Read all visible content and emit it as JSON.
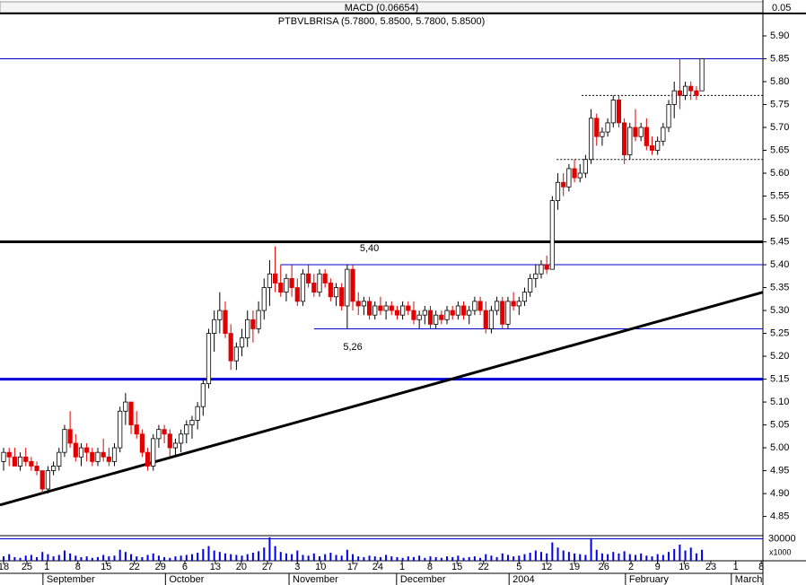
{
  "chart_data": {
    "type": "candlestick",
    "title": "MACD (0.06654)",
    "subtitle": "PTBVLBRISA (5.7800, 5.8500, 5.7800, 5.8500)",
    "macd_ticks": [
      {
        "value": 0.05,
        "label": "0.05"
      }
    ],
    "up_color": "#ffffff",
    "down_color": "#e00000",
    "xlim": [
      -0.65,
      137
    ],
    "xticks": [
      {
        "value": 0,
        "label": "18"
      },
      {
        "value": 4.2,
        "label": "25"
      },
      {
        "value": 7.8,
        "label": "1"
      },
      {
        "value": 13.4,
        "label": "8"
      },
      {
        "value": 18.5,
        "label": "15"
      },
      {
        "value": 23.6,
        "label": "22"
      },
      {
        "value": 28.3,
        "label": "29"
      },
      {
        "value": 32.7,
        "label": "6"
      },
      {
        "value": 38.2,
        "label": "13"
      },
      {
        "value": 42.9,
        "label": "20"
      },
      {
        "value": 47.6,
        "label": "27"
      },
      {
        "value": 53,
        "label": "3"
      },
      {
        "value": 57.2,
        "label": "10"
      },
      {
        "value": 63,
        "label": "17"
      },
      {
        "value": 67.5,
        "label": "24"
      },
      {
        "value": 71.9,
        "label": "1"
      },
      {
        "value": 76.9,
        "label": "8"
      },
      {
        "value": 81.8,
        "label": "15"
      },
      {
        "value": 86.6,
        "label": "22"
      },
      {
        "value": 93,
        "label": "5"
      },
      {
        "value": 98,
        "label": "12"
      },
      {
        "value": 103,
        "label": "19"
      },
      {
        "value": 108.3,
        "label": "26"
      },
      {
        "value": 113.2,
        "label": "2"
      },
      {
        "value": 118,
        "label": "9"
      },
      {
        "value": 122.8,
        "label": "16"
      },
      {
        "value": 127.6,
        "label": "23"
      },
      {
        "value": 132.1,
        "label": "1"
      },
      {
        "value": 136.7,
        "label": "8"
      }
    ],
    "months": [
      {
        "value": 7.1,
        "label": "September"
      },
      {
        "value": 29.2,
        "label": "October"
      },
      {
        "value": 51.5,
        "label": "November"
      },
      {
        "value": 70.9,
        "label": "December"
      },
      {
        "value": 91.2,
        "label": "2004"
      },
      {
        "value": 112.2,
        "label": "February"
      },
      {
        "value": 131.3,
        "label": "March"
      }
    ],
    "ylim": [
      4.81,
      5.95
    ],
    "yticks": [
      {
        "value": 4.85,
        "label": "4.85"
      },
      {
        "value": 4.9,
        "label": "4.90"
      },
      {
        "value": 4.95,
        "label": "4.95"
      },
      {
        "value": 5.0,
        "label": "5.00"
      },
      {
        "value": 5.05,
        "label": "5.05"
      },
      {
        "value": 5.1,
        "label": "5.10"
      },
      {
        "value": 5.15,
        "label": "5.15"
      },
      {
        "value": 5.2,
        "label": "5.20"
      },
      {
        "value": 5.25,
        "label": "5.25"
      },
      {
        "value": 5.3,
        "label": "5.30"
      },
      {
        "value": 5.35,
        "label": "5.35"
      },
      {
        "value": 5.4,
        "label": "5.40"
      },
      {
        "value": 5.45,
        "label": "5.45"
      },
      {
        "value": 5.5,
        "label": "5.50"
      },
      {
        "value": 5.55,
        "label": "5.55"
      },
      {
        "value": 5.6,
        "label": "5.60"
      },
      {
        "value": 5.65,
        "label": "5.65"
      },
      {
        "value": 5.7,
        "label": "5.70"
      },
      {
        "value": 5.75,
        "label": "5.75"
      },
      {
        "value": 5.8,
        "label": "5.80"
      },
      {
        "value": 5.85,
        "label": "5.85"
      },
      {
        "value": 5.9,
        "label": "5.90"
      }
    ],
    "ohlc": [
      [
        4.97,
        5.0,
        4.95,
        4.99
      ],
      [
        4.99,
        5.0,
        4.96,
        4.98
      ],
      [
        4.98,
        5.0,
        4.96,
        4.96
      ],
      [
        4.96,
        4.99,
        4.95,
        4.98
      ],
      [
        4.98,
        5.0,
        4.96,
        4.97
      ],
      [
        4.97,
        4.98,
        4.95,
        4.96
      ],
      [
        4.96,
        4.97,
        4.94,
        4.95
      ],
      [
        4.95,
        4.95,
        4.9,
        4.91
      ],
      [
        4.91,
        4.96,
        4.9,
        4.95
      ],
      [
        4.95,
        4.97,
        4.94,
        4.96
      ],
      [
        4.96,
        5.0,
        4.95,
        4.99
      ],
      [
        4.99,
        5.05,
        4.98,
        5.04
      ],
      [
        5.04,
        5.08,
        5.0,
        5.01
      ],
      [
        5.01,
        5.03,
        4.97,
        4.98
      ],
      [
        4.98,
        5.01,
        4.96,
        5.0
      ],
      [
        5.0,
        5.01,
        4.97,
        4.99
      ],
      [
        4.99,
        5.0,
        4.96,
        4.97
      ],
      [
        4.97,
        5.0,
        4.96,
        4.99
      ],
      [
        4.99,
        5.02,
        4.97,
        4.98
      ],
      [
        4.98,
        5.0,
        4.96,
        4.97
      ],
      [
        4.97,
        5.01,
        4.96,
        5.0
      ],
      [
        5.0,
        5.09,
        4.99,
        5.08
      ],
      [
        5.08,
        5.12,
        5.05,
        5.1
      ],
      [
        5.1,
        5.1,
        5.03,
        5.05
      ],
      [
        5.05,
        5.08,
        5.02,
        5.03
      ],
      [
        5.03,
        5.04,
        4.98,
        4.99
      ],
      [
        4.99,
        5.0,
        4.95,
        4.96
      ],
      [
        4.96,
        5.03,
        4.95,
        5.02
      ],
      [
        5.02,
        5.05,
        5.0,
        5.04
      ],
      [
        5.04,
        5.05,
        5.01,
        5.03
      ],
      [
        5.03,
        5.04,
        4.98,
        5.0
      ],
      [
        5.0,
        5.02,
        4.98,
        5.01
      ],
      [
        5.01,
        5.04,
        4.99,
        5.03
      ],
      [
        5.03,
        5.06,
        5.01,
        5.05
      ],
      [
        5.05,
        5.07,
        5.02,
        5.06
      ],
      [
        5.06,
        5.1,
        5.04,
        5.09
      ],
      [
        5.09,
        5.15,
        5.07,
        5.14
      ],
      [
        5.14,
        5.26,
        5.13,
        5.25
      ],
      [
        5.25,
        5.3,
        5.21,
        5.28
      ],
      [
        5.28,
        5.34,
        5.25,
        5.3
      ],
      [
        5.3,
        5.32,
        5.24,
        5.25
      ],
      [
        5.25,
        5.27,
        5.17,
        5.19
      ],
      [
        5.19,
        5.23,
        5.17,
        5.22
      ],
      [
        5.22,
        5.26,
        5.2,
        5.24
      ],
      [
        5.24,
        5.3,
        5.22,
        5.28
      ],
      [
        5.28,
        5.3,
        5.23,
        5.26
      ],
      [
        5.26,
        5.32,
        5.25,
        5.3
      ],
      [
        5.3,
        5.37,
        5.28,
        5.35
      ],
      [
        5.35,
        5.41,
        5.31,
        5.38
      ],
      [
        5.38,
        5.44,
        5.34,
        5.36
      ],
      [
        5.36,
        5.4,
        5.33,
        5.34
      ],
      [
        5.34,
        5.38,
        5.32,
        5.37
      ],
      [
        5.37,
        5.4,
        5.33,
        5.35
      ],
      [
        5.35,
        5.37,
        5.31,
        5.32
      ],
      [
        5.32,
        5.39,
        5.31,
        5.38
      ],
      [
        5.38,
        5.4,
        5.35,
        5.36
      ],
      [
        5.36,
        5.38,
        5.33,
        5.34
      ],
      [
        5.34,
        5.39,
        5.33,
        5.38
      ],
      [
        5.38,
        5.39,
        5.35,
        5.36
      ],
      [
        5.36,
        5.37,
        5.32,
        5.33
      ],
      [
        5.33,
        5.36,
        5.31,
        5.35
      ],
      [
        5.35,
        5.36,
        5.3,
        5.31
      ],
      [
        5.31,
        5.4,
        5.26,
        5.39
      ],
      [
        5.39,
        5.4,
        5.3,
        5.32
      ],
      [
        5.32,
        5.34,
        5.29,
        5.31
      ],
      [
        5.31,
        5.33,
        5.29,
        5.32
      ],
      [
        5.32,
        5.33,
        5.28,
        5.29
      ],
      [
        5.29,
        5.32,
        5.28,
        5.31
      ],
      [
        5.31,
        5.33,
        5.29,
        5.3
      ],
      [
        5.3,
        5.32,
        5.28,
        5.31
      ],
      [
        5.31,
        5.32,
        5.29,
        5.3
      ],
      [
        5.3,
        5.31,
        5.28,
        5.29
      ],
      [
        5.29,
        5.32,
        5.28,
        5.31
      ],
      [
        5.31,
        5.32,
        5.29,
        5.3
      ],
      [
        5.3,
        5.32,
        5.27,
        5.28
      ],
      [
        5.28,
        5.3,
        5.26,
        5.29
      ],
      [
        5.29,
        5.31,
        5.27,
        5.3
      ],
      [
        5.3,
        5.31,
        5.26,
        5.27
      ],
      [
        5.27,
        5.3,
        5.26,
        5.29
      ],
      [
        5.29,
        5.3,
        5.27,
        5.28
      ],
      [
        5.28,
        5.31,
        5.27,
        5.3
      ],
      [
        5.3,
        5.31,
        5.28,
        5.29
      ],
      [
        5.29,
        5.32,
        5.28,
        5.31
      ],
      [
        5.31,
        5.32,
        5.28,
        5.29
      ],
      [
        5.29,
        5.31,
        5.27,
        5.3
      ],
      [
        5.3,
        5.33,
        5.29,
        5.32
      ],
      [
        5.32,
        5.33,
        5.29,
        5.3
      ],
      [
        5.3,
        5.32,
        5.25,
        5.26
      ],
      [
        5.26,
        5.31,
        5.25,
        5.3
      ],
      [
        5.3,
        5.33,
        5.29,
        5.32
      ],
      [
        5.32,
        5.33,
        5.26,
        5.27
      ],
      [
        5.27,
        5.33,
        5.26,
        5.32
      ],
      [
        5.32,
        5.34,
        5.3,
        5.31
      ],
      [
        5.31,
        5.33,
        5.29,
        5.32
      ],
      [
        5.32,
        5.35,
        5.31,
        5.34
      ],
      [
        5.34,
        5.38,
        5.33,
        5.37
      ],
      [
        5.37,
        5.4,
        5.35,
        5.38
      ],
      [
        5.38,
        5.41,
        5.37,
        5.4
      ],
      [
        5.4,
        5.42,
        5.38,
        5.39
      ],
      [
        5.39,
        5.55,
        5.39,
        5.54
      ],
      [
        5.54,
        5.6,
        5.52,
        5.58
      ],
      [
        5.58,
        5.6,
        5.55,
        5.57
      ],
      [
        5.57,
        5.62,
        5.56,
        5.61
      ],
      [
        5.61,
        5.63,
        5.58,
        5.59
      ],
      [
        5.59,
        5.62,
        5.58,
        5.6
      ],
      [
        5.6,
        5.64,
        5.59,
        5.63
      ],
      [
        5.63,
        5.74,
        5.62,
        5.72
      ],
      [
        5.72,
        5.73,
        5.66,
        5.68
      ],
      [
        5.68,
        5.7,
        5.66,
        5.69
      ],
      [
        5.69,
        5.72,
        5.68,
        5.71
      ],
      [
        5.71,
        5.77,
        5.7,
        5.76
      ],
      [
        5.76,
        5.77,
        5.7,
        5.71
      ],
      [
        5.71,
        5.72,
        5.62,
        5.64
      ],
      [
        5.64,
        5.71,
        5.63,
        5.7
      ],
      [
        5.7,
        5.74,
        5.67,
        5.68
      ],
      [
        5.68,
        5.71,
        5.67,
        5.7
      ],
      [
        5.7,
        5.72,
        5.65,
        5.66
      ],
      [
        5.66,
        5.68,
        5.64,
        5.65
      ],
      [
        5.65,
        5.68,
        5.64,
        5.67
      ],
      [
        5.67,
        5.71,
        5.66,
        5.7
      ],
      [
        5.7,
        5.76,
        5.69,
        5.75
      ],
      [
        5.75,
        5.8,
        5.72,
        5.78
      ],
      [
        5.78,
        5.85,
        5.74,
        5.77
      ],
      [
        5.77,
        5.8,
        5.76,
        5.79
      ],
      [
        5.79,
        5.8,
        5.76,
        5.78
      ],
      [
        5.78,
        5.79,
        5.76,
        5.77
      ],
      [
        5.78,
        5.85,
        5.78,
        5.85
      ]
    ],
    "hlines": [
      {
        "value": 5.85,
        "color": "#0000cc",
        "width": 1
      },
      {
        "value": 5.45,
        "color": "#000000",
        "width": 3
      },
      {
        "value": 5.15,
        "color": "#0000dd",
        "width": 3
      },
      {
        "value": 5.4,
        "color": "#0000cc",
        "width": 1,
        "x_start": 50
      },
      {
        "value": 5.26,
        "color": "#0000cc",
        "width": 1,
        "x_start": 56
      },
      {
        "value": 5.77,
        "color": "#000000",
        "width": 1,
        "x_start": 104.3,
        "dashed": true
      },
      {
        "value": 5.63,
        "color": "#000000",
        "width": 1,
        "x_start": 99.8,
        "dashed": true
      }
    ],
    "trendline": {
      "x": [
        -0.65,
        137
      ],
      "y": [
        4.875,
        5.34
      ],
      "color": "#000000"
    },
    "annotations": [
      {
        "text": "5,40",
        "x": 66,
        "y": 5.435
      },
      {
        "text": "5,26",
        "x": 63,
        "y": 5.22
      }
    ],
    "volume": {
      "color": "#0000ee",
      "ylim": [
        0,
        33000
      ],
      "yticks": [
        30000
      ],
      "unit_label": "x1000",
      "values": [
        6000,
        9000,
        5000,
        4000,
        7000,
        8000,
        5000,
        12000,
        9000,
        6000,
        8000,
        14000,
        10000,
        7000,
        5000,
        6000,
        4000,
        5000,
        8000,
        6000,
        7000,
        15000,
        12000,
        9000,
        6000,
        5000,
        8000,
        10000,
        7000,
        5000,
        4000,
        6000,
        7000,
        8000,
        9000,
        11000,
        16000,
        20000,
        14000,
        12000,
        10000,
        9000,
        8000,
        7000,
        9000,
        11000,
        13000,
        18000,
        32000,
        20000,
        12000,
        10000,
        9000,
        14000,
        8000,
        7000,
        10000,
        6000,
        9000,
        11000,
        8000,
        7000,
        15000,
        9000,
        6000,
        5000,
        7000,
        6000,
        5000,
        8000,
        6000,
        5000,
        4000,
        6000,
        5000,
        7000,
        4000,
        6000,
        5000,
        4000,
        6000,
        5000,
        7000,
        4000,
        5000,
        6000,
        4000,
        9000,
        7000,
        5000,
        10000,
        8000,
        6000,
        7000,
        9000,
        11000,
        14000,
        12000,
        10000,
        25000,
        18000,
        14000,
        12000,
        10000,
        9000,
        8000,
        31000,
        15000,
        10000,
        9000,
        12000,
        10000,
        13000,
        9000,
        8000,
        10000,
        7000,
        6000,
        9000,
        8000,
        12000,
        16000,
        22000,
        14000,
        18000,
        10000,
        15000
      ]
    }
  }
}
